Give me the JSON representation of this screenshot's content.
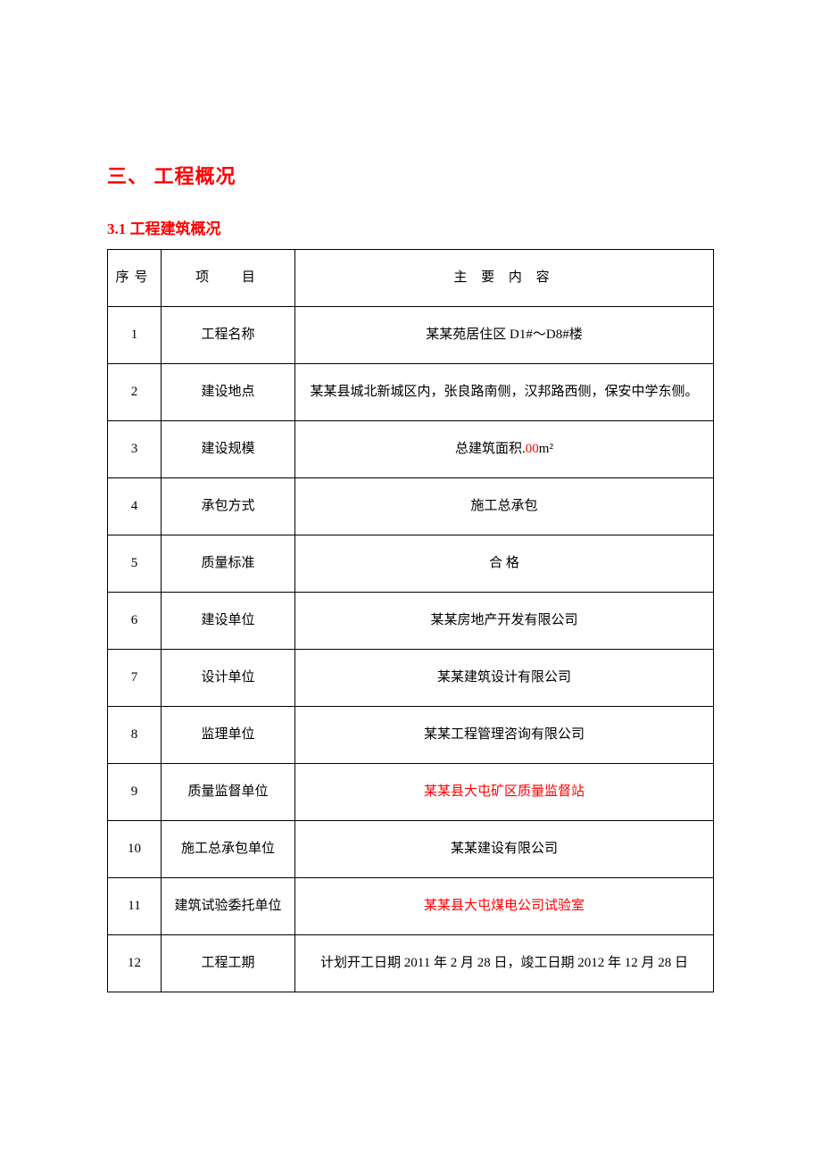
{
  "heading1": "三、  工程概况",
  "heading2": "3.1 工程建筑概况",
  "table": {
    "headers": {
      "num": "序号",
      "item": "项　 目",
      "content": "主 要 内 容"
    },
    "rows": [
      {
        "num": "1",
        "item": "工程名称",
        "content": "某某苑居住区 D1#～D8#楼",
        "red": false
      },
      {
        "num": "2",
        "item": "建设地点",
        "content": "某某县城北新城区内，张良路南侧，汉邦路西侧，保安中学东侧。",
        "red": false
      },
      {
        "num": "3",
        "item": "建设规模",
        "content": "",
        "red": false
      },
      {
        "num": "4",
        "item": "承包方式",
        "content": "施工总承包",
        "red": false
      },
      {
        "num": "5",
        "item": "质量标准",
        "content": "合 格",
        "red": false
      },
      {
        "num": "6",
        "item": "建设单位",
        "content": "某某房地产开发有限公司",
        "red": false
      },
      {
        "num": "7",
        "item": "设计单位",
        "content": "某某建筑设计有限公司",
        "red": false
      },
      {
        "num": "8",
        "item": "监理单位",
        "content": "某某工程管理咨询有限公司",
        "red": false
      },
      {
        "num": "9",
        "item": "质量监督单位",
        "content": "某某县大屯矿区质量监督站",
        "red": true
      },
      {
        "num": "10",
        "item": "施工总承包单位",
        "content": "某某建设有限公司",
        "red": false
      },
      {
        "num": "11",
        "item": "建筑试验委托单位",
        "content": "某某县大屯煤电公司试验室",
        "red": true
      },
      {
        "num": "12",
        "item": "工程工期",
        "content": "计划开工日期 2011 年 2 月 28 日，竣工日期 2012 年 12 月 28 日",
        "red": false
      }
    ],
    "row3_prefix": "总建筑面积.",
    "row3_value": "00",
    "row3_unit": "m²"
  }
}
